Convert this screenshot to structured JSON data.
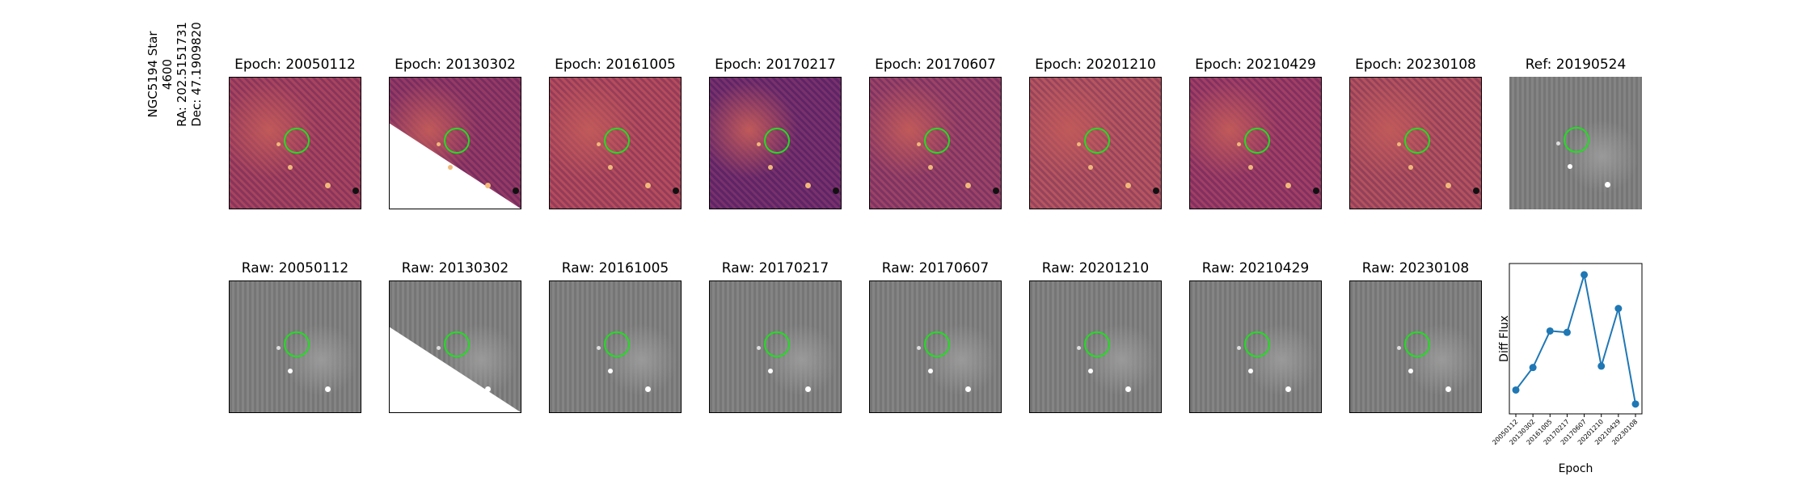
{
  "side_label": [
    "NGC5194 Star 4600",
    "RA: 202.5151731",
    "Dec: 47.1909820"
  ],
  "top_titles": [
    "Epoch: 20050112",
    "Epoch: 20130302",
    "Epoch: 20161005",
    "Epoch: 20170217",
    "Epoch: 20170607",
    "Epoch: 20201210",
    "Epoch: 20210429",
    "Epoch: 20230108",
    "Ref: 20190524"
  ],
  "bottom_titles": [
    "Raw: 20050112",
    "Raw: 20130302",
    "Raw: 20161005",
    "Raw: 20170217",
    "Raw: 20170607",
    "Raw: 20201210",
    "Raw: 20210429",
    "Raw: 20230108"
  ],
  "colors": {
    "diff_cmap": "magma",
    "circle": "#22dd22",
    "line": "#1f77b4",
    "raw": "#7d7d7d"
  },
  "chart_data": {
    "type": "line",
    "xlabel": "Epoch",
    "ylabel": "Diff Flux",
    "categories": [
      "20050112",
      "20130302",
      "20161005",
      "20170217",
      "20170607",
      "20201210",
      "20210429",
      "20230108"
    ],
    "values": [
      0.08,
      0.24,
      0.5,
      0.49,
      0.9,
      0.25,
      0.66,
      -0.02
    ],
    "ylim": [
      -0.09,
      0.98
    ],
    "marker": "circle",
    "y_ticks_visible": false,
    "grid": false
  }
}
